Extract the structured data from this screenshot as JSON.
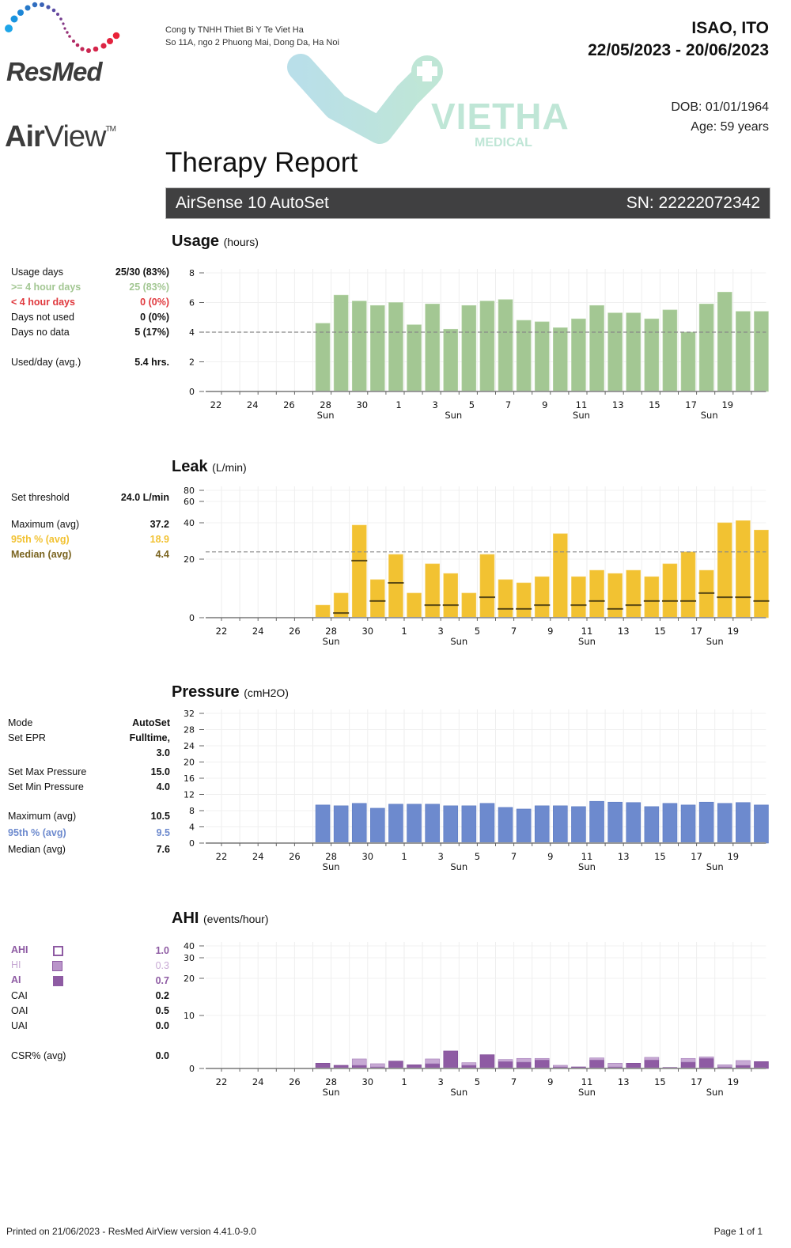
{
  "header": {
    "brand": "ResMed",
    "product_prefix": "Air",
    "product_suffix": "View",
    "trademark": "TM",
    "company_line1": "Cong ty TNHH Thiet Bi Y Te Viet Ha",
    "company_line2": "So 11A, ngo 2 Phuong Mai, Dong Da, Ha Noi",
    "watermark_name": "VIETHA",
    "watermark_sub": "MEDICAL",
    "report_title": "Therapy Report",
    "patient_name": "ISAO, ITO",
    "date_range": "22/05/2023 - 20/06/2023",
    "dob": "DOB: 01/01/1964",
    "age": "Age: 59 years"
  },
  "device": {
    "name": "AirSense 10 AutoSet",
    "serial": "SN: 22222072342"
  },
  "colors": {
    "usage": "#a3c793",
    "leak": "#f2c232",
    "leak_median": "#5b4a14",
    "pressure": "#6d8ace",
    "ahi_ai": "#8e5ba3",
    "ahi_hi": "#c7a9d4",
    "red": "#e0393e",
    "device_bar": "#404041"
  },
  "usage": {
    "title": "Usage",
    "unit": "(hours)",
    "stats": [
      {
        "label": "Usage days",
        "value": "25/30 (83%)",
        "style": "normal"
      },
      {
        "label": ">= 4 hour days",
        "value": "25 (83%)",
        "style": "green"
      },
      {
        "label": "< 4 hour days",
        "value": "0 (0%)",
        "style": "red"
      },
      {
        "label": "Days not used",
        "value": "0 (0%)",
        "style": "normal"
      },
      {
        "label": "Days no data",
        "value": "5 (17%)",
        "style": "normal"
      },
      {
        "label": "Used/day (avg.)",
        "value": "5.4 hrs.",
        "style": "normal"
      }
    ]
  },
  "leak": {
    "title": "Leak",
    "unit": "(L/min)",
    "stats": [
      {
        "label": "Set threshold",
        "value": "24.0 L/min",
        "style": "normal"
      },
      {
        "label": "Maximum (avg)",
        "value": "37.2",
        "style": "normal"
      },
      {
        "label": "95th % (avg)",
        "value": "18.9",
        "style": "yellow"
      },
      {
        "label": "Median (avg)",
        "value": "4.4",
        "style": "olive"
      }
    ]
  },
  "pressure": {
    "title": "Pressure",
    "unit": "(cmH2O)",
    "stats": [
      {
        "label": "Mode",
        "value": "AutoSet"
      },
      {
        "label": "Set EPR",
        "value": "Fulltime,"
      },
      {
        "label": "",
        "value": "3.0"
      },
      {
        "label": "Set Max Pressure",
        "value": "15.0"
      },
      {
        "label": "Set Min Pressure",
        "value": "4.0"
      },
      {
        "label": "Maximum (avg)",
        "value": "10.5"
      },
      {
        "label": "95th % (avg)",
        "value": "9.5"
      },
      {
        "label": "Median (avg)",
        "value": "7.6"
      }
    ]
  },
  "ahi": {
    "title": "AHI",
    "unit": "(events/hour)",
    "stats": [
      {
        "label": "AHI",
        "value": "1.0"
      },
      {
        "label": "HI",
        "value": "0.3"
      },
      {
        "label": "AI",
        "value": "0.7"
      },
      {
        "label": "CAI",
        "value": "0.2"
      },
      {
        "label": "OAI",
        "value": "0.5"
      },
      {
        "label": "UAI",
        "value": "0.0"
      },
      {
        "label": "CSR% (avg)",
        "value": "0.0"
      }
    ]
  },
  "chart_data": [
    {
      "type": "bar",
      "title": "Usage (hours)",
      "categories": [
        "22",
        "23",
        "24",
        "25",
        "26",
        "27",
        "28",
        "29",
        "30",
        "31",
        "1",
        "2",
        "3",
        "4",
        "5",
        "6",
        "7",
        "8",
        "9",
        "10",
        "11",
        "12",
        "13",
        "14",
        "15",
        "16",
        "17",
        "18",
        "19",
        "20"
      ],
      "tick_labels": [
        "22",
        "24",
        "26",
        "28",
        "30",
        "1",
        "3",
        "5",
        "7",
        "9",
        "11",
        "13",
        "15",
        "17",
        "19"
      ],
      "sunday_labels": {
        "28": "Sun",
        "4": "Sun",
        "11": "Sun",
        "18": "Sun"
      },
      "values": [
        null,
        null,
        null,
        null,
        null,
        4.6,
        6.5,
        6.1,
        5.8,
        6.0,
        4.5,
        5.9,
        4.2,
        5.8,
        6.1,
        6.2,
        4.8,
        4.7,
        4.3,
        4.9,
        5.8,
        5.3,
        5.3,
        4.9,
        5.5,
        4.0,
        5.9,
        6.7,
        5.4,
        5.4
      ],
      "yticks": [
        0,
        2,
        4,
        6,
        8
      ],
      "ylim": [
        0,
        8
      ],
      "threshold": 4,
      "grid": true
    },
    {
      "type": "bar",
      "title": "Leak (L/min)",
      "categories": [
        "22",
        "23",
        "24",
        "25",
        "26",
        "27",
        "28",
        "29",
        "30",
        "31",
        "1",
        "2",
        "3",
        "4",
        "5",
        "6",
        "7",
        "8",
        "9",
        "10",
        "11",
        "12",
        "13",
        "14",
        "15",
        "16",
        "17",
        "18",
        "19",
        "20"
      ],
      "tick_labels": [
        "22",
        "24",
        "26",
        "28",
        "30",
        "1",
        "3",
        "5",
        "7",
        "9",
        "11",
        "13",
        "15",
        "17",
        "19"
      ],
      "sunday_labels": {
        "28": "Sun",
        "4": "Sun",
        "11": "Sun",
        "18": "Sun"
      },
      "series": [
        {
          "name": "95th %",
          "values": [
            null,
            null,
            null,
            null,
            null,
            4.3,
            8.4,
            38.7,
            13.0,
            22.6,
            8.4,
            18.4,
            15.1,
            8.4,
            22.6,
            13.0,
            11.9,
            14.0,
            34.0,
            14.0,
            16.2,
            15.1,
            16.2,
            14.0,
            18.4,
            24.0,
            16.2,
            40.0,
            42.0,
            36.0
          ]
        },
        {
          "name": "Median",
          "values": [
            null,
            null,
            null,
            null,
            null,
            null,
            1.6,
            19.5,
            5.7,
            11.9,
            null,
            4.3,
            4.3,
            null,
            7.0,
            3.0,
            3.0,
            4.3,
            null,
            4.3,
            5.7,
            3.0,
            4.3,
            5.7,
            5.7,
            5.7,
            8.4,
            7.0,
            7.0,
            5.7
          ]
        }
      ],
      "yticks": [
        0,
        20,
        40,
        60,
        80
      ],
      "ylim": [
        0,
        80
      ],
      "yscale": "compressed",
      "threshold": 24,
      "grid": true
    },
    {
      "type": "bar",
      "title": "Pressure (cmH2O)",
      "categories": [
        "22",
        "23",
        "24",
        "25",
        "26",
        "27",
        "28",
        "29",
        "30",
        "31",
        "1",
        "2",
        "3",
        "4",
        "5",
        "6",
        "7",
        "8",
        "9",
        "10",
        "11",
        "12",
        "13",
        "14",
        "15",
        "16",
        "17",
        "18",
        "19",
        "20"
      ],
      "tick_labels": [
        "22",
        "24",
        "26",
        "28",
        "30",
        "1",
        "3",
        "5",
        "7",
        "9",
        "11",
        "13",
        "15",
        "17",
        "19"
      ],
      "sunday_labels": {
        "28": "Sun",
        "4": "Sun",
        "11": "Sun",
        "18": "Sun"
      },
      "values": [
        null,
        null,
        null,
        null,
        null,
        9.4,
        9.2,
        9.8,
        8.6,
        9.6,
        9.6,
        9.6,
        9.2,
        9.2,
        9.8,
        8.8,
        8.4,
        9.2,
        9.2,
        9.0,
        10.3,
        10.1,
        10.0,
        9.0,
        9.8,
        9.4,
        10.1,
        9.8,
        10.0,
        9.4
      ],
      "yticks": [
        0,
        4,
        8,
        12,
        16,
        20,
        24,
        28,
        32
      ],
      "ylim": [
        0,
        32
      ],
      "grid": true
    },
    {
      "type": "bar",
      "title": "AHI (events/hour)",
      "categories": [
        "22",
        "23",
        "24",
        "25",
        "26",
        "27",
        "28",
        "29",
        "30",
        "31",
        "1",
        "2",
        "3",
        "4",
        "5",
        "6",
        "7",
        "8",
        "9",
        "10",
        "11",
        "12",
        "13",
        "14",
        "15",
        "16",
        "17",
        "18",
        "19",
        "20"
      ],
      "tick_labels": [
        "22",
        "24",
        "26",
        "28",
        "30",
        "1",
        "3",
        "5",
        "7",
        "9",
        "11",
        "13",
        "15",
        "17",
        "19"
      ],
      "sunday_labels": {
        "28": "Sun",
        "4": "Sun",
        "11": "Sun",
        "18": "Sun"
      },
      "series": [
        {
          "name": "AI",
          "values": [
            null,
            null,
            null,
            null,
            null,
            1.0,
            0.6,
            0.6,
            0.3,
            1.4,
            0.7,
            0.9,
            3.3,
            0.6,
            2.6,
            1.3,
            1.2,
            1.6,
            0.3,
            0.3,
            1.6,
            0.3,
            1.0,
            1.6,
            0.2,
            1.2,
            1.9,
            0.3,
            0.6,
            1.3
          ]
        },
        {
          "name": "HI",
          "values": [
            null,
            null,
            null,
            null,
            null,
            0.0,
            0.0,
            1.2,
            0.6,
            0.0,
            0.0,
            0.9,
            0.0,
            0.5,
            0.0,
            0.4,
            0.7,
            0.3,
            0.3,
            0.0,
            0.4,
            0.7,
            0.0,
            0.5,
            0.0,
            0.7,
            0.3,
            0.4,
            0.9,
            0.0
          ]
        }
      ],
      "yticks": [
        0,
        10,
        20,
        30,
        40
      ],
      "ylim": [
        0,
        40
      ],
      "yscale": "compressed",
      "stacked": true,
      "grid": true
    }
  ],
  "footer": {
    "printed": "Printed on 21/06/2023 - ResMed AirView version 4.41.0-9.0",
    "page": "Page 1 of 1"
  }
}
